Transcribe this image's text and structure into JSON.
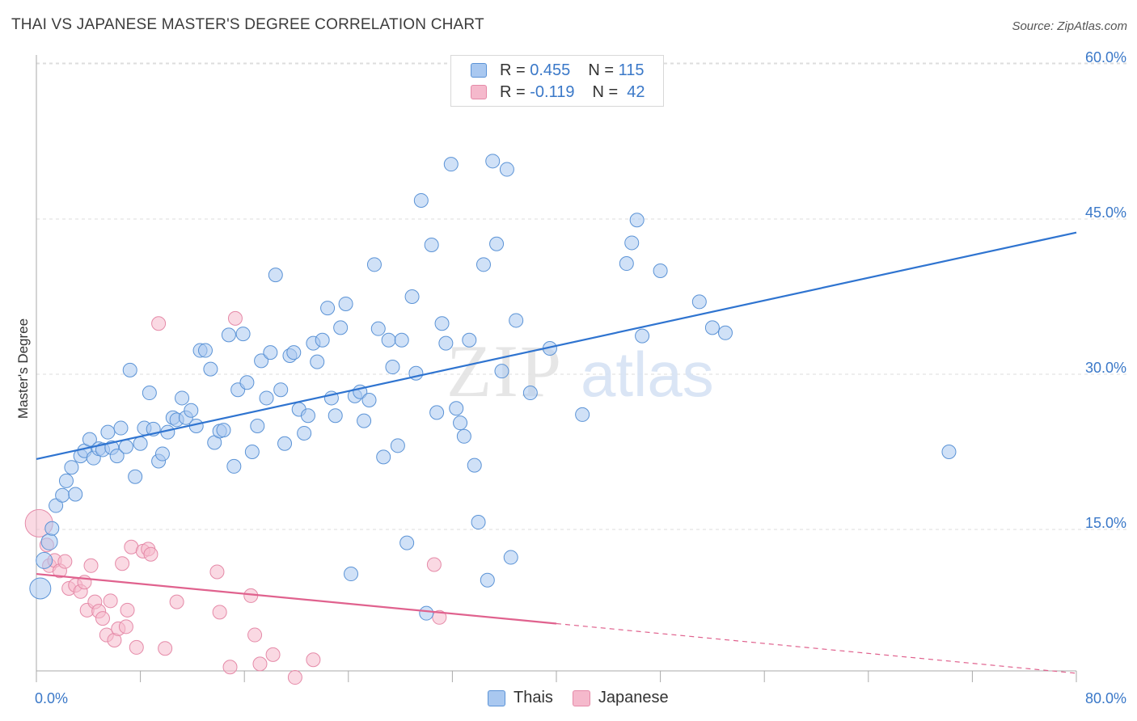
{
  "title": "THAI VS JAPANESE MASTER'S DEGREE CORRELATION CHART",
  "source": "Source: ZipAtlas.com",
  "colors": {
    "thai_fill": "#a9c8f0",
    "thai_stroke": "#5b93d6",
    "thai_line": "#2f74d0",
    "japanese_fill": "#f5b9cc",
    "japanese_stroke": "#e58aa8",
    "japanese_line": "#e0628e",
    "tick_text": "#3a78c8",
    "grid": "#dddddd"
  },
  "legend": {
    "r_label": "R =",
    "n_label": "N =",
    "rows": [
      {
        "series": "Thais",
        "r": "0.455",
        "n": "115"
      },
      {
        "series": "Japanese",
        "r": "-0.119",
        "n": "42"
      }
    ]
  },
  "bottom_legend": [
    "Thais",
    "Japanese"
  ],
  "watermark": {
    "zip": "ZIP",
    "atlas": "atlas"
  },
  "chart_data": {
    "type": "scatter",
    "ylabel": "Master's Degree",
    "xlabel": "",
    "xlim": [
      0,
      80
    ],
    "ylim": [
      0,
      62
    ],
    "x_tick_labels": [
      {
        "value": 0,
        "label": "0.0%"
      },
      {
        "value": 80,
        "label": "80.0%"
      }
    ],
    "y_tick_labels": [
      {
        "value": 15,
        "label": "15.0%"
      },
      {
        "value": 30,
        "label": "30.0%"
      },
      {
        "value": 45,
        "label": "45.0%"
      },
      {
        "value": 60,
        "label": "60.0%"
      }
    ],
    "grid": true,
    "series": [
      {
        "name": "Thais",
        "trendline": {
          "x": [
            0,
            80
          ],
          "y": [
            21.8,
            43.7
          ]
        },
        "points": [
          [
            0.3,
            9.3
          ],
          [
            0.6,
            12.0
          ],
          [
            1.0,
            13.8
          ],
          [
            1.2,
            15.1
          ],
          [
            1.5,
            17.3
          ],
          [
            2.0,
            18.3
          ],
          [
            2.3,
            19.7
          ],
          [
            2.7,
            21.0
          ],
          [
            3.0,
            18.4
          ],
          [
            3.4,
            22.1
          ],
          [
            3.7,
            22.6
          ],
          [
            4.1,
            23.7
          ],
          [
            4.4,
            21.9
          ],
          [
            4.8,
            22.8
          ],
          [
            5.1,
            22.7
          ],
          [
            5.5,
            24.4
          ],
          [
            5.8,
            22.9
          ],
          [
            6.2,
            22.1
          ],
          [
            6.5,
            24.8
          ],
          [
            6.9,
            23.0
          ],
          [
            7.2,
            30.4
          ],
          [
            7.6,
            20.1
          ],
          [
            8.0,
            23.3
          ],
          [
            8.3,
            24.8
          ],
          [
            8.7,
            28.2
          ],
          [
            9.0,
            24.7
          ],
          [
            9.4,
            21.6
          ],
          [
            9.7,
            22.3
          ],
          [
            10.1,
            24.4
          ],
          [
            10.5,
            25.8
          ],
          [
            10.8,
            25.6
          ],
          [
            11.2,
            27.7
          ],
          [
            11.5,
            25.8
          ],
          [
            11.9,
            26.5
          ],
          [
            12.3,
            25.0
          ],
          [
            12.6,
            32.3
          ],
          [
            13.0,
            32.3
          ],
          [
            13.4,
            30.5
          ],
          [
            13.7,
            23.4
          ],
          [
            14.1,
            24.5
          ],
          [
            14.4,
            24.6
          ],
          [
            14.8,
            33.8
          ],
          [
            15.2,
            21.1
          ],
          [
            15.5,
            28.5
          ],
          [
            15.9,
            33.9
          ],
          [
            16.2,
            29.2
          ],
          [
            16.6,
            22.5
          ],
          [
            17.0,
            25.0
          ],
          [
            17.3,
            31.3
          ],
          [
            17.7,
            27.7
          ],
          [
            18.0,
            32.1
          ],
          [
            18.4,
            39.6
          ],
          [
            18.8,
            28.5
          ],
          [
            19.1,
            23.3
          ],
          [
            19.5,
            31.8
          ],
          [
            19.8,
            32.1
          ],
          [
            20.2,
            26.6
          ],
          [
            20.6,
            24.3
          ],
          [
            20.9,
            26.0
          ],
          [
            21.3,
            33.0
          ],
          [
            21.6,
            31.2
          ],
          [
            22.0,
            33.3
          ],
          [
            22.4,
            36.4
          ],
          [
            22.7,
            27.7
          ],
          [
            23.0,
            26.0
          ],
          [
            23.4,
            34.5
          ],
          [
            23.8,
            36.8
          ],
          [
            24.2,
            10.7
          ],
          [
            24.5,
            27.9
          ],
          [
            24.9,
            28.3
          ],
          [
            25.2,
            25.5
          ],
          [
            25.6,
            27.5
          ],
          [
            26.0,
            40.6
          ],
          [
            26.3,
            34.4
          ],
          [
            26.7,
            22.0
          ],
          [
            27.1,
            33.3
          ],
          [
            27.4,
            30.7
          ],
          [
            27.8,
            23.1
          ],
          [
            28.1,
            33.3
          ],
          [
            28.5,
            13.7
          ],
          [
            28.9,
            37.5
          ],
          [
            29.2,
            30.1
          ],
          [
            29.6,
            46.8
          ],
          [
            30.0,
            6.9
          ],
          [
            30.4,
            42.5
          ],
          [
            30.8,
            26.3
          ],
          [
            31.2,
            34.9
          ],
          [
            31.5,
            33.0
          ],
          [
            31.9,
            50.3
          ],
          [
            32.3,
            26.7
          ],
          [
            32.6,
            25.3
          ],
          [
            32.9,
            24.0
          ],
          [
            33.3,
            33.3
          ],
          [
            33.7,
            21.2
          ],
          [
            34.0,
            15.7
          ],
          [
            34.4,
            40.6
          ],
          [
            34.7,
            10.1
          ],
          [
            35.1,
            50.6
          ],
          [
            35.4,
            42.6
          ],
          [
            35.8,
            30.3
          ],
          [
            36.2,
            49.8
          ],
          [
            36.5,
            12.3
          ],
          [
            36.9,
            35.2
          ],
          [
            38.0,
            28.2
          ],
          [
            39.5,
            32.5
          ],
          [
            42.0,
            26.1
          ],
          [
            45.4,
            40.7
          ],
          [
            45.8,
            42.7
          ],
          [
            46.2,
            44.9
          ],
          [
            46.6,
            33.7
          ],
          [
            48.0,
            40.0
          ],
          [
            51.0,
            37.0
          ],
          [
            52.0,
            34.5
          ],
          [
            53.0,
            34.0
          ],
          [
            70.2,
            22.5
          ]
        ]
      },
      {
        "name": "Japanese",
        "trendline": {
          "x": [
            0,
            40
          ],
          "y": [
            10.7,
            5.9
          ]
        },
        "trendline_ext": {
          "x": [
            40,
            80
          ],
          "y": [
            5.9,
            1.1
          ]
        },
        "points": [
          [
            0.2,
            15.6
          ],
          [
            0.8,
            13.5
          ],
          [
            1.0,
            11.5
          ],
          [
            1.4,
            12.0
          ],
          [
            1.8,
            11.0
          ],
          [
            2.2,
            11.9
          ],
          [
            2.5,
            9.3
          ],
          [
            3.0,
            9.6
          ],
          [
            3.4,
            9.0
          ],
          [
            3.7,
            9.9
          ],
          [
            3.9,
            7.2
          ],
          [
            4.2,
            11.5
          ],
          [
            4.5,
            8.0
          ],
          [
            4.8,
            7.1
          ],
          [
            5.1,
            6.4
          ],
          [
            5.4,
            4.8
          ],
          [
            5.7,
            8.1
          ],
          [
            6.0,
            4.3
          ],
          [
            6.3,
            5.4
          ],
          [
            6.6,
            11.7
          ],
          [
            6.9,
            5.6
          ],
          [
            7.0,
            7.2
          ],
          [
            7.3,
            13.3
          ],
          [
            7.7,
            3.6
          ],
          [
            8.2,
            12.9
          ],
          [
            8.6,
            13.1
          ],
          [
            8.8,
            12.6
          ],
          [
            9.4,
            34.9
          ],
          [
            9.9,
            3.5
          ],
          [
            10.8,
            8.0
          ],
          [
            13.9,
            10.9
          ],
          [
            14.1,
            7.0
          ],
          [
            14.9,
            1.7
          ],
          [
            15.3,
            35.4
          ],
          [
            16.5,
            8.6
          ],
          [
            16.8,
            4.8
          ],
          [
            17.2,
            2.0
          ],
          [
            18.2,
            2.9
          ],
          [
            19.9,
            0.7
          ],
          [
            21.3,
            2.4
          ],
          [
            30.6,
            11.6
          ],
          [
            31.0,
            6.5
          ]
        ]
      }
    ]
  }
}
